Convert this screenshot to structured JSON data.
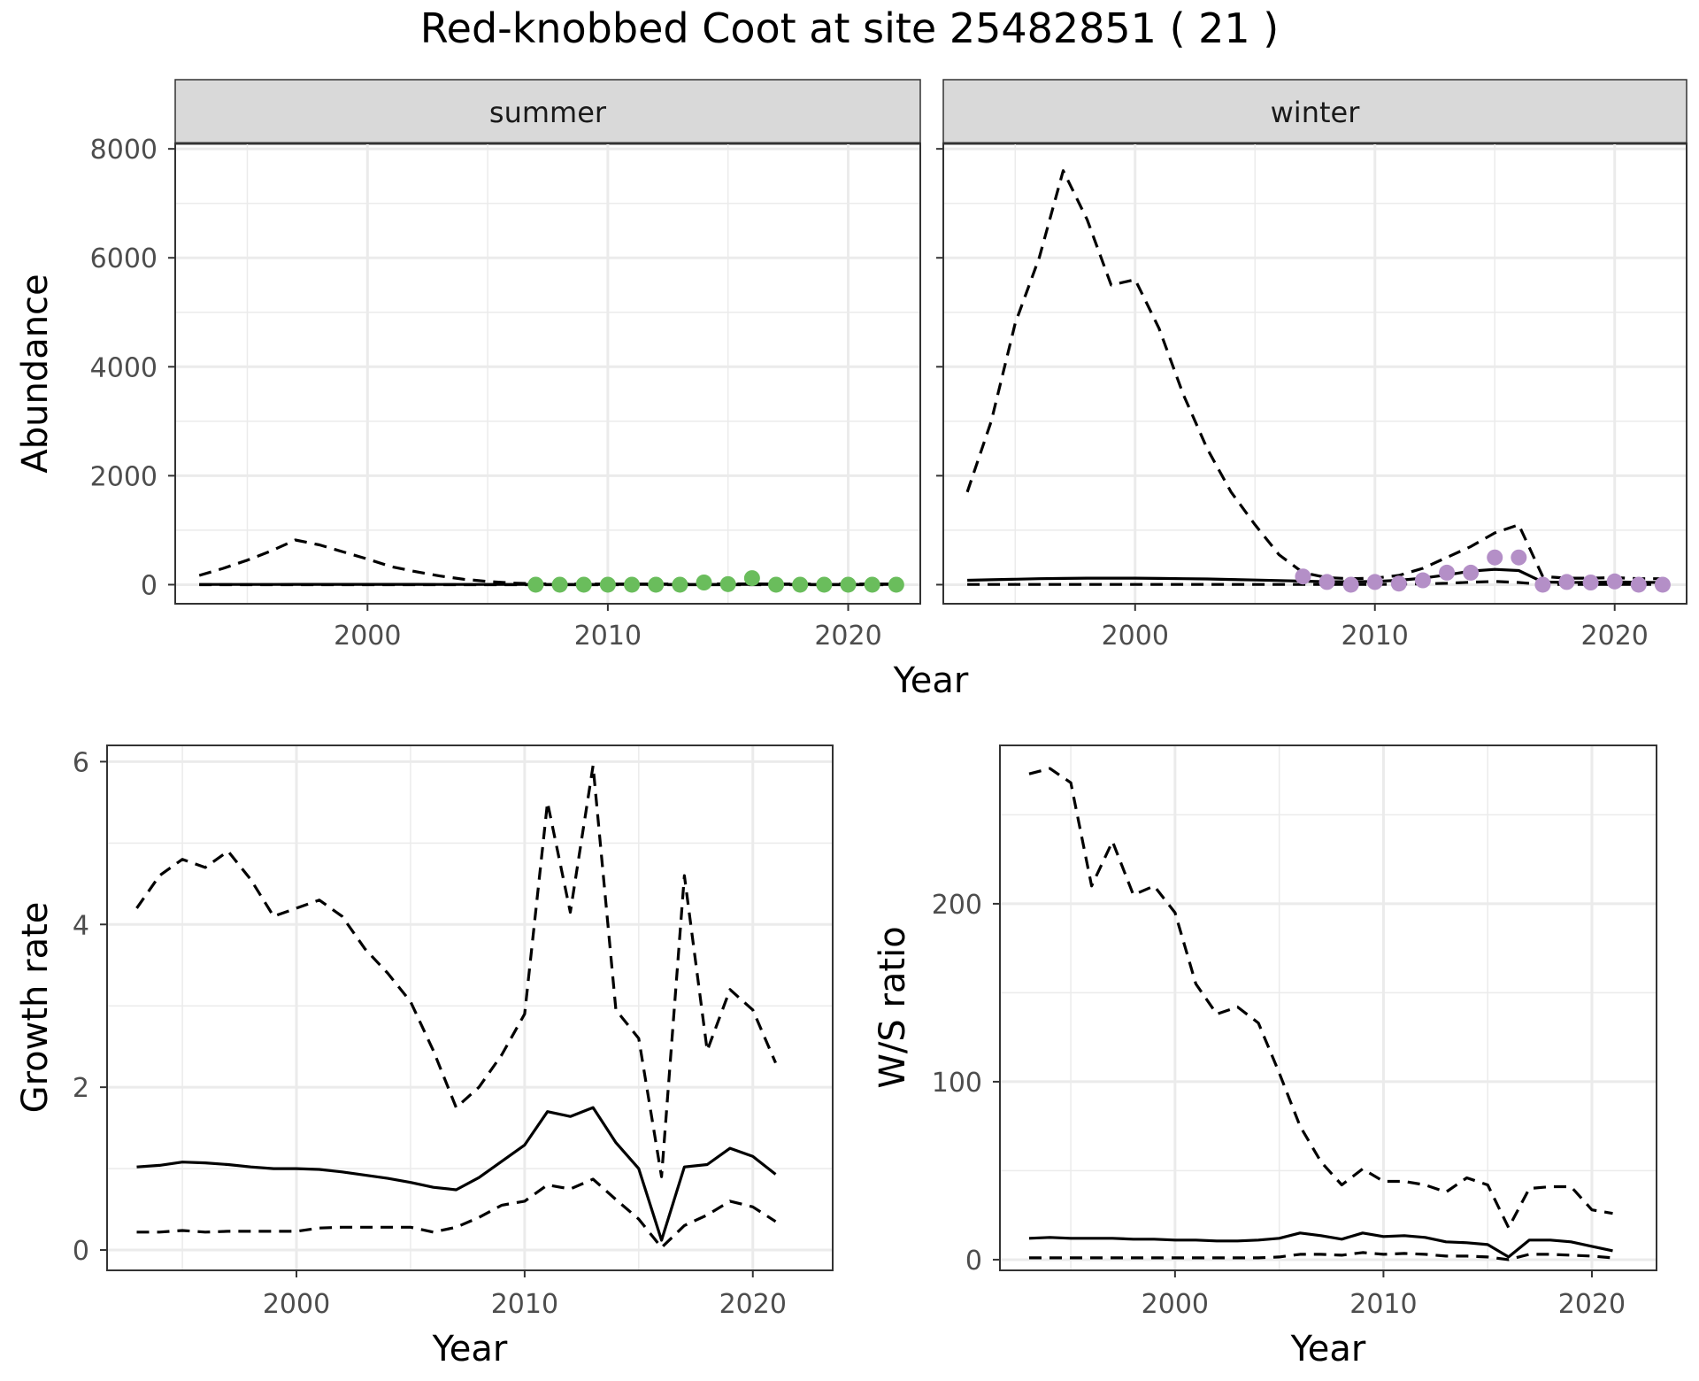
{
  "title": "Red-knobbed Coot at site 25482851 ( 21 )",
  "chart_data": [
    {
      "type": "line",
      "panel": "summer",
      "strip_label": "summer",
      "xlabel": "",
      "ylabel": "Abundance",
      "xlim": [
        1992,
        2023
      ],
      "ylim": [
        -350,
        8100
      ],
      "x_ticks": [
        2000,
        2010,
        2020
      ],
      "y_ticks": [
        0,
        2000,
        4000,
        6000,
        8000
      ],
      "point_color": "#6abd5c",
      "lines": {
        "x": [
          1993,
          1994,
          1995,
          1996,
          1997,
          1998,
          1999,
          2000,
          2001,
          2002,
          2003,
          2004,
          2005,
          2006,
          2007,
          2008,
          2009,
          2010,
          2011,
          2012,
          2013,
          2014,
          2015,
          2016,
          2017,
          2018,
          2019,
          2020,
          2021,
          2022
        ],
        "upper": [
          170,
          300,
          450,
          620,
          820,
          730,
          600,
          470,
          330,
          240,
          160,
          100,
          60,
          30,
          15,
          12,
          12,
          12,
          12,
          12,
          12,
          14,
          14,
          14,
          12,
          12,
          12,
          12,
          12,
          12
        ],
        "mid": [
          5,
          5,
          5,
          5,
          6,
          6,
          6,
          6,
          6,
          6,
          5,
          5,
          5,
          5,
          5,
          5,
          5,
          5,
          5,
          5,
          5,
          5,
          5,
          5,
          5,
          5,
          5,
          5,
          5,
          5
        ],
        "lower": [
          0,
          0,
          0,
          0,
          0,
          0,
          0,
          0,
          0,
          0,
          0,
          0,
          0,
          0,
          0,
          0,
          0,
          0,
          0,
          0,
          0,
          0,
          0,
          0,
          0,
          0,
          0,
          0,
          0,
          0
        ]
      },
      "points": {
        "x": [
          2007,
          2008,
          2009,
          2010,
          2011,
          2012,
          2013,
          2014,
          2015,
          2016,
          2017,
          2018,
          2019,
          2020,
          2021,
          2022
        ],
        "y": [
          0,
          0,
          0,
          0,
          0,
          0,
          0,
          40,
          10,
          120,
          0,
          0,
          0,
          0,
          0,
          0
        ]
      }
    },
    {
      "type": "line",
      "panel": "winter",
      "strip_label": "winter",
      "xlabel": "",
      "ylabel": "",
      "xlim": [
        1992,
        2023
      ],
      "ylim": [
        -350,
        8100
      ],
      "x_ticks": [
        2000,
        2010,
        2020
      ],
      "y_ticks": [
        0,
        2000,
        4000,
        6000,
        8000
      ],
      "point_color": "#b48fc7",
      "lines": {
        "x": [
          1993,
          1994,
          1995,
          1996,
          1997,
          1998,
          1999,
          2000,
          2001,
          2002,
          2003,
          2004,
          2005,
          2006,
          2007,
          2008,
          2009,
          2010,
          2011,
          2012,
          2013,
          2014,
          2015,
          2016,
          2017,
          2018,
          2019,
          2020,
          2021,
          2022
        ],
        "upper": [
          1700,
          3000,
          4800,
          6000,
          7600,
          6700,
          5500,
          5600,
          4700,
          3500,
          2500,
          1700,
          1100,
          550,
          220,
          130,
          110,
          120,
          170,
          300,
          500,
          700,
          950,
          1100,
          150,
          120,
          120,
          130,
          110,
          110
        ],
        "mid": [
          80,
          90,
          100,
          110,
          115,
          120,
          120,
          120,
          115,
          110,
          105,
          95,
          85,
          75,
          65,
          55,
          55,
          60,
          80,
          120,
          180,
          250,
          280,
          260,
          50,
          40,
          45,
          50,
          45,
          40
        ],
        "lower": [
          5,
          5,
          5,
          5,
          5,
          5,
          5,
          5,
          5,
          5,
          5,
          5,
          5,
          5,
          5,
          5,
          5,
          5,
          10,
          15,
          25,
          45,
          60,
          40,
          5,
          5,
          5,
          5,
          5,
          5
        ]
      },
      "points": {
        "x": [
          2007,
          2008,
          2009,
          2010,
          2011,
          2012,
          2013,
          2014,
          2015,
          2016,
          2017,
          2018,
          2019,
          2020,
          2021,
          2022
        ],
        "y": [
          150,
          50,
          0,
          50,
          20,
          80,
          220,
          220,
          500,
          500,
          0,
          50,
          40,
          60,
          0,
          0
        ]
      }
    },
    {
      "type": "line",
      "panel": "growth",
      "xlabel": "Year",
      "ylabel": "Growth rate",
      "xlim": [
        1991.7,
        2023.5
      ],
      "ylim": [
        -0.25,
        6.2
      ],
      "x_ticks": [
        2000,
        2010,
        2020
      ],
      "y_ticks": [
        0,
        2,
        4,
        6
      ],
      "lines": {
        "x": [
          1993,
          1994,
          1995,
          1996,
          1997,
          1998,
          1999,
          2000,
          2001,
          2002,
          2003,
          2004,
          2005,
          2006,
          2007,
          2008,
          2009,
          2010,
          2011,
          2012,
          2013,
          2014,
          2015,
          2016,
          2017,
          2018,
          2019,
          2020,
          2021
        ],
        "upper": [
          4.2,
          4.6,
          4.8,
          4.7,
          4.9,
          4.55,
          4.1,
          4.2,
          4.3,
          4.1,
          3.7,
          3.4,
          3.05,
          2.45,
          1.75,
          2.0,
          2.4,
          2.9,
          5.5,
          4.15,
          5.95,
          2.95,
          2.6,
          0.9,
          4.6,
          2.45,
          3.2,
          2.95,
          2.3
        ],
        "mid": [
          1.02,
          1.04,
          1.08,
          1.07,
          1.05,
          1.02,
          1.0,
          1.0,
          0.99,
          0.96,
          0.92,
          0.88,
          0.83,
          0.77,
          0.74,
          0.89,
          1.09,
          1.29,
          1.7,
          1.64,
          1.75,
          1.32,
          1.0,
          0.12,
          1.02,
          1.05,
          1.25,
          1.15,
          0.93
        ],
        "lower": [
          0.22,
          0.22,
          0.24,
          0.22,
          0.23,
          0.23,
          0.23,
          0.23,
          0.27,
          0.28,
          0.28,
          0.28,
          0.28,
          0.22,
          0.28,
          0.4,
          0.55,
          0.6,
          0.8,
          0.75,
          0.87,
          0.62,
          0.38,
          0.03,
          0.3,
          0.43,
          0.6,
          0.53,
          0.35
        ]
      }
    },
    {
      "type": "line",
      "panel": "ratio",
      "xlabel": "Year",
      "ylabel": "W/S ratio",
      "xlim": [
        1991.6,
        2023.1
      ],
      "ylim": [
        -6,
        289
      ],
      "x_ticks": [
        2000,
        2010,
        2020
      ],
      "y_ticks": [
        0,
        100,
        200
      ],
      "lines": {
        "x": [
          1993,
          1994,
          1995,
          1996,
          1997,
          1998,
          1999,
          2000,
          2001,
          2002,
          2003,
          2004,
          2005,
          2006,
          2007,
          2008,
          2009,
          2010,
          2011,
          2012,
          2013,
          2014,
          2015,
          2016,
          2017,
          2018,
          2019,
          2020,
          2021
        ],
        "upper": [
          273,
          276,
          268,
          210,
          235,
          205,
          210,
          195,
          155,
          138,
          142,
          133,
          105,
          75,
          55,
          42,
          51,
          44,
          44,
          42,
          38,
          46,
          42,
          18,
          40,
          41,
          41,
          28,
          26
        ],
        "mid": [
          12,
          12.5,
          12,
          12,
          12,
          11.5,
          11.5,
          11,
          11,
          10.5,
          10.5,
          11,
          12,
          15,
          13.5,
          11.5,
          15,
          13,
          13.5,
          12.5,
          10,
          9.5,
          8.5,
          1.5,
          11,
          11,
          10,
          7.5,
          5
        ],
        "lower": [
          1,
          1,
          1,
          1,
          1,
          1,
          1,
          1,
          1,
          1,
          1,
          1,
          1.5,
          3,
          3,
          2.5,
          4,
          3,
          3.5,
          3,
          2,
          2,
          1.5,
          0,
          3,
          3,
          2.5,
          2,
          1
        ]
      }
    }
  ]
}
